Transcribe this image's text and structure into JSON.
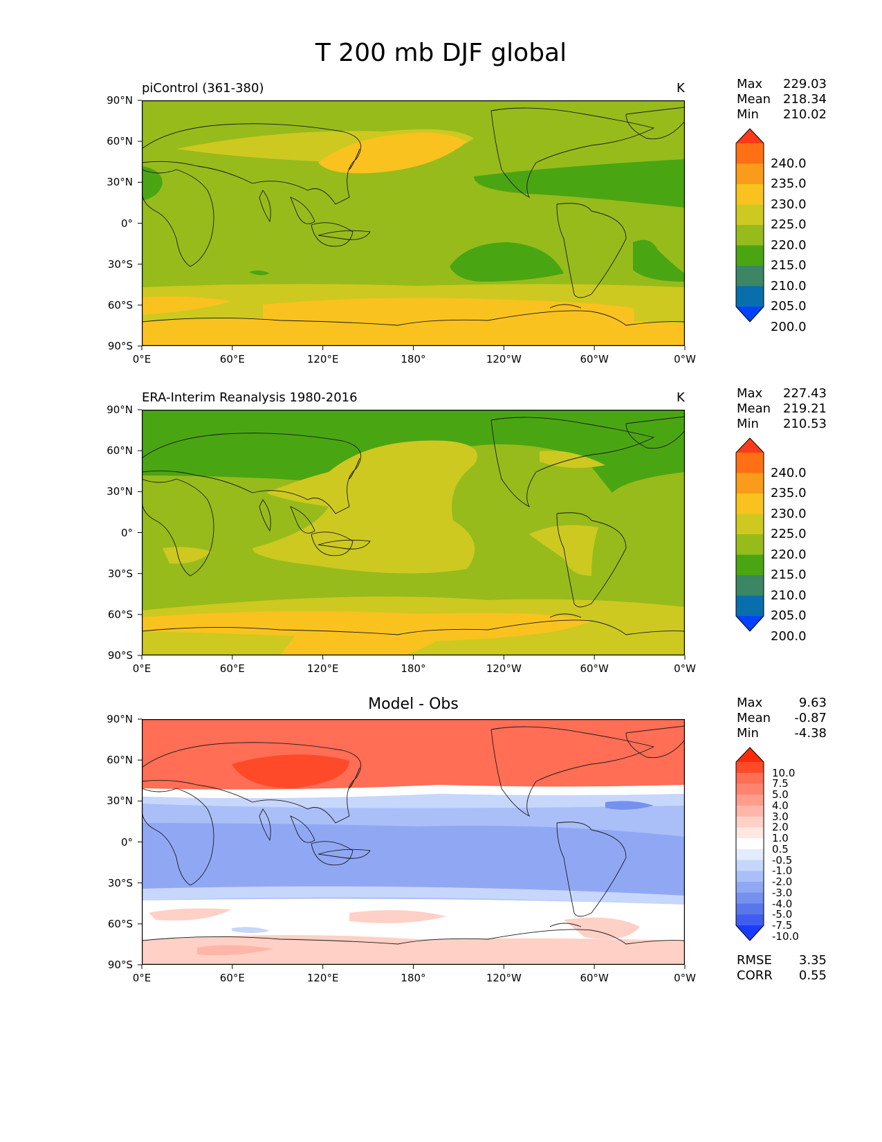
{
  "title": "T 200 mb DJF global",
  "axes": {
    "lat_labels": [
      "90°N",
      "60°N",
      "30°N",
      "0°",
      "30°S",
      "60°S",
      "90°S"
    ],
    "lon_labels": [
      "0°E",
      "60°E",
      "120°E",
      "180°",
      "120°W",
      "60°W",
      "0°W"
    ]
  },
  "panels": [
    {
      "title_left": "piControl (361-380)",
      "title_center": "",
      "units": "K",
      "stats": [
        {
          "label": "Max",
          "value": "229.03"
        },
        {
          "label": "Mean",
          "value": "218.34"
        },
        {
          "label": "Min",
          "value": "210.02"
        }
      ],
      "colorbar": {
        "labels": [
          "240.0",
          "235.0",
          "230.0",
          "225.0",
          "220.0",
          "215.0",
          "210.0",
          "205.0",
          "200.0"
        ],
        "colors": [
          "#ff3a1a",
          "#ff6f13",
          "#fb9b1a",
          "#f9c21f",
          "#cdc920",
          "#97bb1b",
          "#4aa513",
          "#3b8664",
          "#086fac",
          "#0042ff"
        ]
      }
    },
    {
      "title_left": "ERA-Interim Reanalysis 1980-2016",
      "title_center": "",
      "units": "K",
      "stats": [
        {
          "label": "Max",
          "value": "227.43"
        },
        {
          "label": "Mean",
          "value": "219.21"
        },
        {
          "label": "Min",
          "value": "210.53"
        }
      ],
      "colorbar": {
        "labels": [
          "240.0",
          "235.0",
          "230.0",
          "225.0",
          "220.0",
          "215.0",
          "210.0",
          "205.0",
          "200.0"
        ],
        "colors": [
          "#ff3a1a",
          "#ff6f13",
          "#fb9b1a",
          "#f9c21f",
          "#cdc920",
          "#97bb1b",
          "#4aa513",
          "#3b8664",
          "#086fac",
          "#0042ff"
        ]
      }
    },
    {
      "title_left": "",
      "title_center": "Model - Obs",
      "units": "",
      "stats": [
        {
          "label": "Max",
          "value": "9.63"
        },
        {
          "label": "Mean",
          "value": "-0.87"
        },
        {
          "label": "Min",
          "value": "-4.38"
        }
      ],
      "extra_stats": [
        {
          "label": "RMSE",
          "value": "3.35"
        },
        {
          "label": "CORR",
          "value": "0.55"
        }
      ],
      "colorbar": {
        "labels": [
          "10.0",
          "7.5",
          "5.0",
          "4.0",
          "3.0",
          "2.0",
          "1.0",
          "0.5",
          "-0.5",
          "-1.0",
          "-2.0",
          "-3.0",
          "-4.0",
          "-5.0",
          "-7.5",
          "-10.0"
        ],
        "colors": [
          "#ff2a0a",
          "#ff4a2a",
          "#ff6e55",
          "#ff8470",
          "#ff9c8a",
          "#ffb6a8",
          "#ffd0c6",
          "#ffe8e2",
          "#ffffff",
          "#e3ebfd",
          "#c7d6fb",
          "#aabff8",
          "#90a8f4",
          "#7590ef",
          "#5977ea",
          "#3f5ef0",
          "#1a3cff"
        ]
      }
    }
  ]
}
